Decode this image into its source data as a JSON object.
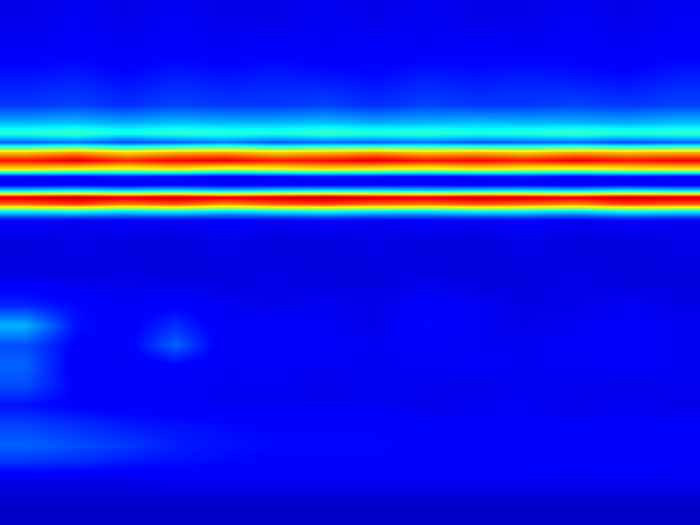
{
  "chart_data": {
    "type": "heatmap",
    "xlim": [
      0,
      700
    ],
    "ylim": [
      525,
      0
    ],
    "zlim": [
      0,
      1
    ],
    "tick_labels": false,
    "x": [
      25,
      75,
      125,
      175,
      225,
      275,
      325,
      375,
      425,
      475,
      525,
      575,
      625,
      675
    ],
    "y": [
      15,
      45,
      75,
      105,
      122,
      132,
      142,
      152,
      160,
      168,
      176,
      184,
      190,
      197,
      204,
      211,
      220,
      245,
      275,
      305,
      325,
      345,
      365,
      385,
      405,
      425,
      445,
      460,
      480,
      500,
      518
    ],
    "cells": [
      [
        0.09,
        0.1,
        0.09,
        0.1,
        0.09,
        0.09,
        0.1,
        0.09,
        0.1,
        0.09,
        0.09,
        0.1,
        0.09,
        0.1
      ],
      [
        0.1,
        0.11,
        0.1,
        0.11,
        0.1,
        0.11,
        0.1,
        0.11,
        0.1,
        0.11,
        0.1,
        0.11,
        0.1,
        0.11
      ],
      [
        0.14,
        0.15,
        0.13,
        0.15,
        0.14,
        0.15,
        0.14,
        0.13,
        0.15,
        0.14,
        0.15,
        0.14,
        0.13,
        0.15
      ],
      [
        0.18,
        0.19,
        0.17,
        0.19,
        0.18,
        0.18,
        0.19,
        0.17,
        0.19,
        0.18,
        0.18,
        0.19,
        0.18,
        0.19
      ],
      [
        0.3,
        0.31,
        0.29,
        0.31,
        0.3,
        0.3,
        0.31,
        0.29,
        0.3,
        0.31,
        0.3,
        0.3,
        0.29,
        0.31
      ],
      [
        0.42,
        0.44,
        0.4,
        0.43,
        0.42,
        0.41,
        0.44,
        0.42,
        0.43,
        0.41,
        0.42,
        0.44,
        0.42,
        0.43
      ],
      [
        0.22,
        0.24,
        0.2,
        0.22,
        0.25,
        0.21,
        0.23,
        0.22,
        0.24,
        0.21,
        0.22,
        0.23,
        0.2,
        0.22
      ],
      [
        0.68,
        0.72,
        0.66,
        0.7,
        0.71,
        0.67,
        0.69,
        0.72,
        0.68,
        0.7,
        0.67,
        0.71,
        0.69,
        0.7
      ],
      [
        0.86,
        0.9,
        0.84,
        0.88,
        0.89,
        0.85,
        0.87,
        0.9,
        0.86,
        0.88,
        0.85,
        0.89,
        0.86,
        0.88
      ],
      [
        0.66,
        0.64,
        0.62,
        0.65,
        0.6,
        0.63,
        0.66,
        0.64,
        0.62,
        0.65,
        0.63,
        0.61,
        0.64,
        0.65
      ],
      [
        0.14,
        0.13,
        0.15,
        0.14,
        0.12,
        0.13,
        0.15,
        0.14,
        0.13,
        0.14,
        0.15,
        0.13,
        0.14,
        0.13
      ],
      [
        0.1,
        0.11,
        0.1,
        0.12,
        0.1,
        0.11,
        0.1,
        0.11,
        0.12,
        0.1,
        0.11,
        0.1,
        0.11,
        0.1
      ],
      [
        0.34,
        0.36,
        0.33,
        0.35,
        0.32,
        0.34,
        0.36,
        0.35,
        0.33,
        0.34,
        0.35,
        0.33,
        0.36,
        0.34
      ],
      [
        0.92,
        0.95,
        0.91,
        0.94,
        0.9,
        0.93,
        0.95,
        0.92,
        0.91,
        0.94,
        0.92,
        0.9,
        0.94,
        0.93
      ],
      [
        0.76,
        0.8,
        0.74,
        0.78,
        0.72,
        0.77,
        0.79,
        0.76,
        0.75,
        0.78,
        0.76,
        0.73,
        0.79,
        0.77
      ],
      [
        0.36,
        0.38,
        0.34,
        0.37,
        0.33,
        0.36,
        0.38,
        0.35,
        0.34,
        0.37,
        0.36,
        0.33,
        0.38,
        0.36
      ],
      [
        0.11,
        0.1,
        0.11,
        0.1,
        0.11,
        0.1,
        0.11,
        0.1,
        0.11,
        0.1,
        0.11,
        0.1,
        0.11,
        0.1
      ],
      [
        0.08,
        0.09,
        0.08,
        0.08,
        0.09,
        0.08,
        0.08,
        0.09,
        0.08,
        0.08,
        0.09,
        0.08,
        0.08,
        0.09
      ],
      [
        0.09,
        0.08,
        0.09,
        0.08,
        0.08,
        0.09,
        0.08,
        0.08,
        0.09,
        0.08,
        0.08,
        0.09,
        0.08,
        0.08
      ],
      [
        0.16,
        0.13,
        0.1,
        0.12,
        0.1,
        0.09,
        0.1,
        0.09,
        0.11,
        0.1,
        0.09,
        0.09,
        0.1,
        0.09
      ],
      [
        0.3,
        0.14,
        0.11,
        0.17,
        0.1,
        0.12,
        0.1,
        0.09,
        0.13,
        0.1,
        0.09,
        0.1,
        0.11,
        0.1
      ],
      [
        0.2,
        0.12,
        0.11,
        0.22,
        0.1,
        0.12,
        0.11,
        0.1,
        0.11,
        0.1,
        0.1,
        0.11,
        0.12,
        0.1
      ],
      [
        0.22,
        0.11,
        0.1,
        0.12,
        0.1,
        0.11,
        0.1,
        0.1,
        0.1,
        0.11,
        0.1,
        0.1,
        0.11,
        0.1
      ],
      [
        0.2,
        0.12,
        0.11,
        0.1,
        0.1,
        0.1,
        0.09,
        0.1,
        0.1,
        0.09,
        0.1,
        0.1,
        0.09,
        0.1
      ],
      [
        0.14,
        0.12,
        0.11,
        0.11,
        0.1,
        0.1,
        0.1,
        0.1,
        0.09,
        0.1,
        0.1,
        0.09,
        0.1,
        0.09
      ],
      [
        0.19,
        0.17,
        0.15,
        0.14,
        0.13,
        0.12,
        0.12,
        0.12,
        0.11,
        0.11,
        0.11,
        0.11,
        0.11,
        0.11
      ],
      [
        0.22,
        0.2,
        0.18,
        0.15,
        0.14,
        0.13,
        0.13,
        0.13,
        0.12,
        0.12,
        0.12,
        0.12,
        0.12,
        0.12
      ],
      [
        0.18,
        0.17,
        0.15,
        0.14,
        0.13,
        0.12,
        0.12,
        0.12,
        0.12,
        0.12,
        0.12,
        0.11,
        0.12,
        0.11
      ],
      [
        0.09,
        0.09,
        0.09,
        0.1,
        0.1,
        0.1,
        0.1,
        0.1,
        0.1,
        0.1,
        0.1,
        0.1,
        0.1,
        0.1
      ],
      [
        0.07,
        0.07,
        0.07,
        0.07,
        0.07,
        0.07,
        0.07,
        0.07,
        0.07,
        0.07,
        0.07,
        0.07,
        0.07,
        0.07
      ],
      [
        0.06,
        0.06,
        0.06,
        0.06,
        0.06,
        0.06,
        0.06,
        0.06,
        0.06,
        0.06,
        0.06,
        0.06,
        0.06,
        0.06
      ]
    ]
  }
}
